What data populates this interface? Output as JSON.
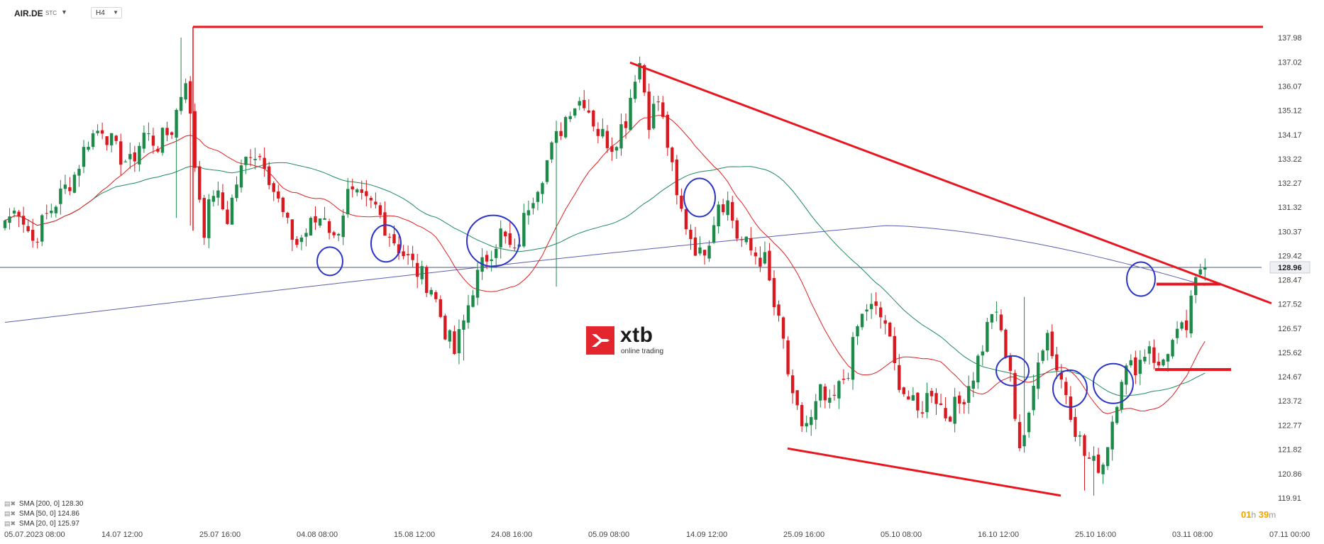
{
  "header": {
    "symbol": "AIR.DE",
    "symbol_sub": "STC",
    "timeframe": "H4"
  },
  "chart_data": {
    "type": "candlestick",
    "symbol": "AIR.DE",
    "timeframe": "H4",
    "last_price": 128.96,
    "ylim": [
      119.91,
      138.93
    ],
    "y_ticks": [
      137.98,
      137.02,
      136.07,
      135.12,
      134.17,
      133.22,
      132.27,
      131.32,
      130.37,
      129.42,
      128.47,
      127.52,
      126.57,
      125.62,
      124.67,
      123.72,
      122.77,
      121.82,
      120.86,
      119.91
    ],
    "x_ticks": [
      "05.07.2023  08:00",
      "14.07  12:00",
      "25.07  16:00",
      "04.08  08:00",
      "15.08  12:00",
      "24.08  16:00",
      "05.09  08:00",
      "14.09  12:00",
      "25.09  16:00",
      "05.10  08:00",
      "16.10  12:00",
      "25.10  16:00",
      "03.11  08:00",
      "07.11  00:00"
    ],
    "anchors": [
      [
        0,
        130.8
      ],
      [
        3,
        131.3
      ],
      [
        6,
        130.0
      ],
      [
        9,
        131.0
      ],
      [
        12,
        131.8
      ],
      [
        15,
        132.6
      ],
      [
        18,
        134.0
      ],
      [
        21,
        134.5
      ],
      [
        24,
        133.5
      ],
      [
        27,
        133.0
      ],
      [
        30,
        134.2
      ],
      [
        33,
        133.8
      ],
      [
        36,
        134.4
      ],
      [
        39,
        136.5
      ],
      [
        41,
        133.0
      ],
      [
        43,
        130.5
      ],
      [
        45,
        132.0
      ],
      [
        48,
        130.9
      ],
      [
        50,
        132.3
      ],
      [
        53,
        133.6
      ],
      [
        56,
        133.2
      ],
      [
        58,
        132.0
      ],
      [
        61,
        130.5
      ],
      [
        63,
        129.9
      ],
      [
        66,
        130.6
      ],
      [
        69,
        131.1
      ],
      [
        71,
        130.0
      ],
      [
        74,
        131.8
      ],
      [
        77,
        131.5
      ],
      [
        80,
        131.3
      ],
      [
        83,
        130.3
      ],
      [
        86,
        129.5
      ],
      [
        89,
        128.8
      ],
      [
        92,
        128.2
      ],
      [
        95,
        126.5
      ],
      [
        97,
        125.6
      ],
      [
        99,
        126.8
      ],
      [
        101,
        128.2
      ],
      [
        104,
        129.4
      ],
      [
        107,
        130.3
      ],
      [
        110,
        129.4
      ],
      [
        113,
        131.5
      ],
      [
        116,
        132.7
      ],
      [
        119,
        134.0
      ],
      [
        122,
        135.3
      ],
      [
        125,
        135.6
      ],
      [
        128,
        134.3
      ],
      [
        131,
        133.8
      ],
      [
        134,
        134.8
      ],
      [
        136,
        136.6
      ],
      [
        137,
        137.0
      ],
      [
        139,
        134.8
      ],
      [
        141,
        135.5
      ],
      [
        143,
        133.8
      ],
      [
        145,
        131.6
      ],
      [
        148,
        130.2
      ],
      [
        150,
        129.4
      ],
      [
        152,
        130.2
      ],
      [
        154,
        131.6
      ],
      [
        156,
        131.5
      ],
      [
        158,
        130.2
      ],
      [
        161,
        129.6
      ],
      [
        164,
        129.2
      ],
      [
        166,
        127.4
      ],
      [
        168,
        126.0
      ],
      [
        170,
        123.6
      ],
      [
        172,
        122.8
      ],
      [
        174,
        122.9
      ],
      [
        176,
        124.0
      ],
      [
        178,
        123.4
      ],
      [
        180,
        124.2
      ],
      [
        182,
        125.0
      ],
      [
        184,
        126.6
      ],
      [
        186,
        127.4
      ],
      [
        188,
        127.2
      ],
      [
        190,
        126.8
      ],
      [
        192,
        125.0
      ],
      [
        194,
        124.1
      ],
      [
        197,
        123.2
      ],
      [
        200,
        124.2
      ],
      [
        203,
        123.2
      ],
      [
        206,
        123.6
      ],
      [
        209,
        124.8
      ],
      [
        211,
        125.9
      ],
      [
        213,
        127.3
      ],
      [
        215,
        126.4
      ],
      [
        217,
        124.6
      ],
      [
        219,
        122.0
      ],
      [
        221,
        122.9
      ],
      [
        223,
        125.6
      ],
      [
        225,
        126.4
      ],
      [
        227,
        125.0
      ],
      [
        229,
        124.1
      ],
      [
        231,
        122.7
      ],
      [
        233,
        121.6
      ],
      [
        235,
        121.2
      ],
      [
        237,
        121.3
      ],
      [
        239,
        123.0
      ],
      [
        241,
        124.8
      ],
      [
        243,
        125.0
      ],
      [
        245,
        125.3
      ],
      [
        247,
        126.0
      ],
      [
        249,
        124.9
      ],
      [
        251,
        125.8
      ],
      [
        253,
        126.2
      ],
      [
        255,
        126.6
      ],
      [
        257,
        128.3
      ],
      [
        258,
        128.96
      ]
    ],
    "series": [
      {
        "name": "SMA [200, 0]",
        "value": 128.3,
        "color": "#5b5fb0"
      },
      {
        "name": "SMA [50, 0]",
        "value": 124.86,
        "color": "#1e8a5a"
      },
      {
        "name": "SMA [20, 0]",
        "value": 125.97,
        "color": "#e02020"
      }
    ],
    "colors": {
      "up": "#1d8a4a",
      "down": "#d81920",
      "price_line": "#4a5a7a",
      "trendline": "#e8171f",
      "markers": "#2b35c8"
    }
  },
  "legend": [
    {
      "label": "SMA [200, 0] 128.30",
      "icon": "visibility-icon"
    },
    {
      "label": "SMA [50, 0] 124.86",
      "icon": "visibility-icon"
    },
    {
      "label": "SMA [20, 0] 125.97",
      "icon": "visibility-icon"
    }
  ],
  "timer": {
    "hours": "01",
    "h_unit": "h",
    "minutes": "39",
    "m_unit": "m"
  },
  "logo": {
    "name": "xtb",
    "tagline": "online trading"
  }
}
